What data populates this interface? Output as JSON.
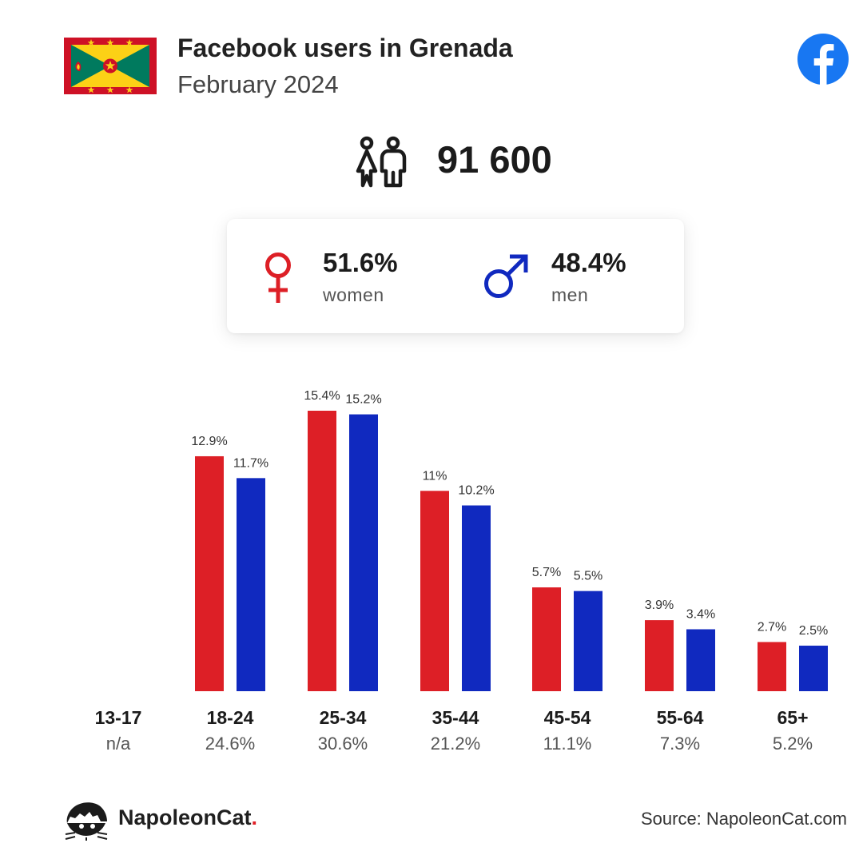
{
  "header": {
    "title": "Facebook users in Grenada",
    "subtitle": "February 2024"
  },
  "icons": {
    "flag": "grenada-flag-icon",
    "facebook": "facebook-logo-icon",
    "people": "people-icon",
    "female": "female-symbol-icon",
    "male": "male-symbol-icon",
    "brand": "napoleoncat-logo-icon"
  },
  "total_users": "91 600",
  "gender": {
    "women": {
      "pct": "51.6%",
      "label": "women"
    },
    "men": {
      "pct": "48.4%",
      "label": "men"
    }
  },
  "colors": {
    "women": "#dd1f26",
    "men": "#1029bf",
    "facebook": "#1877f2"
  },
  "chart_data": {
    "type": "bar",
    "categories": [
      "13-17",
      "18-24",
      "25-34",
      "35-44",
      "45-54",
      "55-64",
      "65+"
    ],
    "category_totals": [
      "n/a",
      "24.6%",
      "30.6%",
      "21.2%",
      "11.1%",
      "7.3%",
      "5.2%"
    ],
    "series": [
      {
        "name": "women",
        "values": [
          null,
          12.9,
          15.4,
          11,
          5.7,
          3.9,
          2.7
        ],
        "labels": [
          "",
          "12.9%",
          "15.4%",
          "11%",
          "5.7%",
          "3.9%",
          "2.7%"
        ]
      },
      {
        "name": "men",
        "values": [
          null,
          11.7,
          15.2,
          10.2,
          5.5,
          3.4,
          2.5
        ],
        "labels": [
          "",
          "11.7%",
          "15.2%",
          "10.2%",
          "5.5%",
          "3.4%",
          "2.5%"
        ]
      }
    ],
    "title": "",
    "xlabel": "",
    "ylabel": "",
    "ylim": [
      0,
      15.4
    ],
    "grid": false
  },
  "footer": {
    "brand_name": "NapoleonCat",
    "brand_dot": ".",
    "source": "Source: NapoleonCat.com"
  }
}
